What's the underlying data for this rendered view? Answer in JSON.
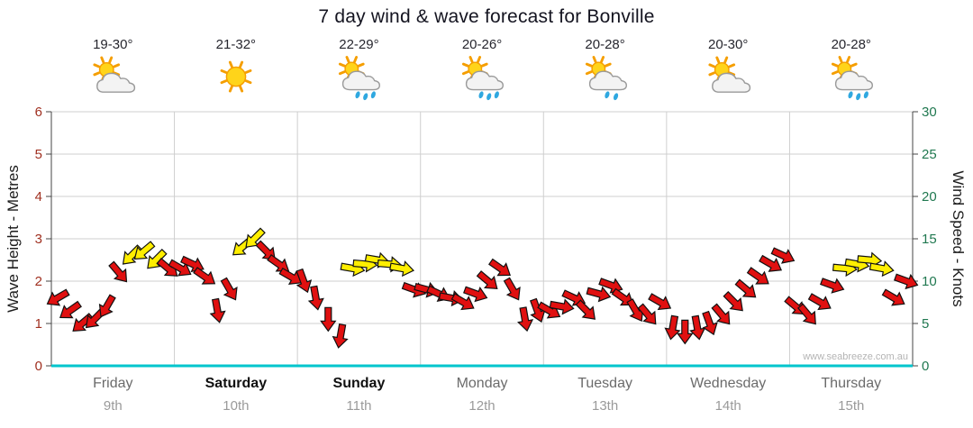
{
  "title": "7 day wind & wave forecast for Bonville",
  "watermark": "www.seabreeze.com.au",
  "axes": {
    "left_label": "Wave Height - Metres",
    "right_label": "Wind Speed - Knots",
    "left_ticks": [
      0,
      1,
      2,
      3,
      4,
      5,
      6
    ],
    "right_ticks": [
      0,
      5,
      10,
      15,
      20,
      25,
      30
    ]
  },
  "colors": {
    "arrow_red": "#e01010",
    "arrow_yellow": "#ffee00",
    "arrow_outline": "#111111",
    "grid": "#cfcfcf",
    "axis_line": "#444444",
    "baseline": "#00c5cd",
    "left_tick_text": "#a03020",
    "right_tick_text": "#207850",
    "day_name": "#6b6b6b",
    "day_name_weekend": "#111111",
    "day_date": "#9a9a9a",
    "temp_text": "#26262e",
    "title_text": "#141420",
    "watermark_text": "#b4b4b4"
  },
  "days": [
    {
      "name": "Friday",
      "date": "9th",
      "temp": "19-30°",
      "icon": "partly-cloudy",
      "weekend": false
    },
    {
      "name": "Saturday",
      "date": "10th",
      "temp": "21-32°",
      "icon": "sunny",
      "weekend": true
    },
    {
      "name": "Sunday",
      "date": "11th",
      "temp": "22-29°",
      "icon": "showers",
      "weekend": true
    },
    {
      "name": "Monday",
      "date": "12th",
      "temp": "20-26°",
      "icon": "showers",
      "weekend": false
    },
    {
      "name": "Tuesday",
      "date": "13th",
      "temp": "20-28°",
      "icon": "light-showers",
      "weekend": false
    },
    {
      "name": "Wednesday",
      "date": "14th",
      "temp": "20-30°",
      "icon": "partly-cloudy",
      "weekend": false
    },
    {
      "name": "Thursday",
      "date": "15th",
      "temp": "20-28°",
      "icon": "showers",
      "weekend": false
    }
  ],
  "chart_data": {
    "type": "scatter",
    "subtype": "wind-arrows",
    "title": "7 day wind & wave forecast for Bonville",
    "ylabel_left": "Wave Height - Metres",
    "ylabel_right": "Wind Speed - Knots",
    "ylim_metres": [
      0,
      6
    ],
    "ylim_knots": [
      0,
      30
    ],
    "grid": true,
    "legend_position": "none",
    "points_per_day": 10,
    "note": "Each arrow is one forecast point at ~2.4h spacing; arrow height read on the knots axis (wave metres = knots/5); dir = pointing direction in degrees clockwise from east; yellow arrows mark the offshore/sea-breeze regime.",
    "series": [
      {
        "day": "Friday",
        "knots": [
          8,
          6.5,
          5,
          5.5,
          7,
          11,
          13,
          13.5,
          12.5,
          11.5
        ],
        "dir": [
          150,
          145,
          140,
          135,
          120,
          50,
          135,
          140,
          135,
          40
        ],
        "color": [
          "red",
          "red",
          "red",
          "red",
          "red",
          "red",
          "yellow",
          "yellow",
          "yellow",
          "red"
        ]
      },
      {
        "day": "Saturday",
        "knots": [
          11.5,
          12,
          10.5,
          6.5,
          9,
          14,
          15,
          13.5,
          12,
          10.5
        ],
        "dir": [
          30,
          25,
          35,
          80,
          60,
          140,
          135,
          45,
          35,
          30
        ],
        "color": [
          "red",
          "red",
          "red",
          "red",
          "red",
          "yellow",
          "yellow",
          "red",
          "red",
          "red"
        ]
      },
      {
        "day": "Sunday",
        "knots": [
          10,
          8,
          5.5,
          3.5,
          11.5,
          12,
          12.5,
          12,
          11.5,
          9
        ],
        "dir": [
          70,
          80,
          90,
          100,
          10,
          5,
          10,
          5,
          10,
          20
        ],
        "color": [
          "red",
          "red",
          "red",
          "red",
          "yellow",
          "yellow",
          "yellow",
          "yellow",
          "yellow",
          "red"
        ]
      },
      {
        "day": "Monday",
        "knots": [
          9,
          8.5,
          8,
          7.5,
          8.5,
          10,
          11.5,
          9,
          5.5,
          6.5
        ],
        "dir": [
          15,
          25,
          10,
          30,
          20,
          40,
          35,
          60,
          80,
          70
        ],
        "color": [
          "red",
          "red",
          "red",
          "red",
          "red",
          "red",
          "red",
          "red",
          "red",
          "red"
        ]
      },
      {
        "day": "Tuesday",
        "knots": [
          6.5,
          7,
          8,
          6.5,
          8.5,
          9.5,
          8,
          6.5,
          6,
          7.5
        ],
        "dir": [
          30,
          10,
          25,
          45,
          15,
          20,
          35,
          60,
          50,
          30
        ],
        "color": [
          "red",
          "red",
          "red",
          "red",
          "red",
          "red",
          "red",
          "red",
          "red",
          "red"
        ]
      },
      {
        "day": "Wednesday",
        "knots": [
          4.5,
          4,
          4.5,
          5,
          6,
          7.5,
          9,
          10.5,
          12,
          13
        ],
        "dir": [
          100,
          90,
          80,
          70,
          50,
          45,
          40,
          35,
          30,
          25
        ],
        "color": [
          "red",
          "red",
          "red",
          "red",
          "red",
          "red",
          "red",
          "red",
          "red",
          "red"
        ]
      },
      {
        "day": "Thursday",
        "knots": [
          7,
          6,
          7.5,
          9.5,
          11.5,
          12,
          12.5,
          11.5,
          8,
          10
        ],
        "dir": [
          40,
          50,
          30,
          20,
          5,
          10,
          5,
          10,
          30,
          20
        ],
        "color": [
          "red",
          "red",
          "red",
          "red",
          "yellow",
          "yellow",
          "yellow",
          "yellow",
          "red",
          "red"
        ]
      }
    ]
  }
}
